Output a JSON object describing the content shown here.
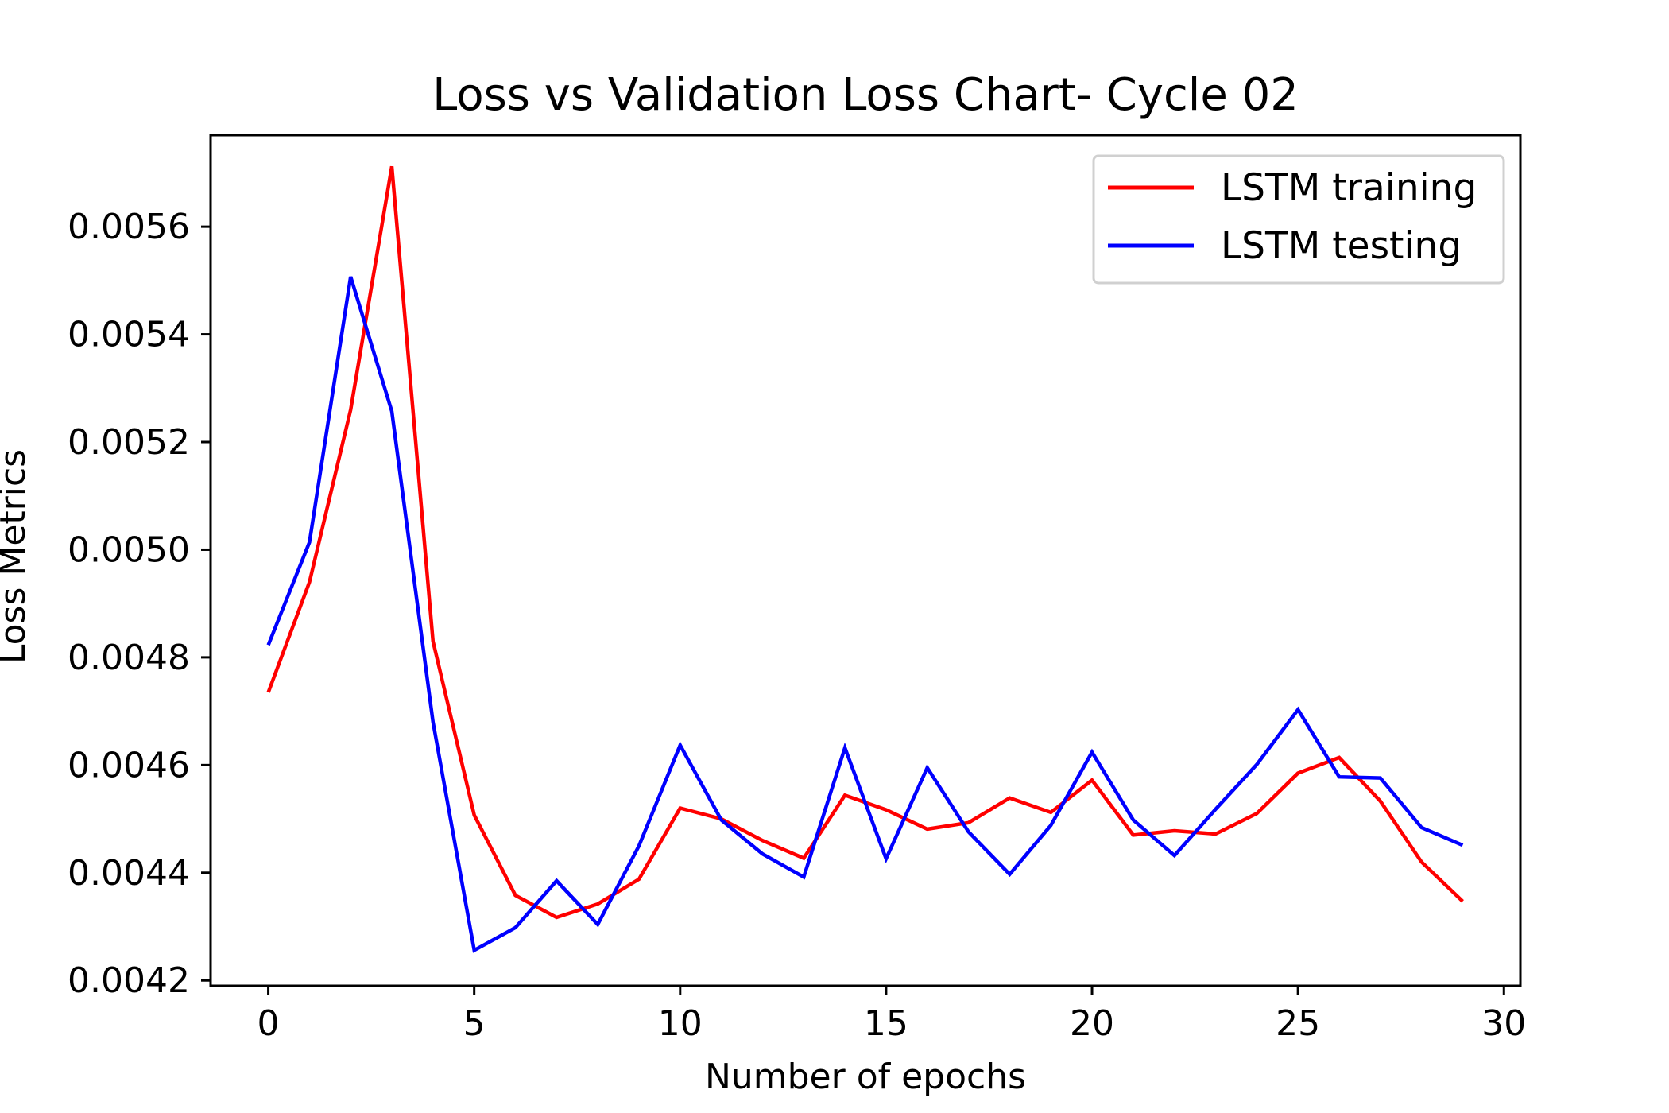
{
  "chart_data": {
    "type": "line",
    "title": "Loss vs Validation Loss Chart- Cycle 02",
    "xlabel": "Number of epochs",
    "ylabel": "Loss Metrics",
    "xlim": [
      -1.4,
      30.4
    ],
    "ylim": [
      0.00419,
      0.00577
    ],
    "xticks": [
      "0",
      "5",
      "10",
      "15",
      "20",
      "25",
      "30"
    ],
    "yticks": [
      "0.0042",
      "0.0044",
      "0.0046",
      "0.0048",
      "0.0050",
      "0.0052",
      "0.0054",
      "0.0056"
    ],
    "grid": false,
    "legend_position": "top-right",
    "x": [
      0,
      1,
      2,
      3,
      4,
      5,
      6,
      7,
      8,
      9,
      10,
      11,
      12,
      13,
      14,
      15,
      16,
      17,
      18,
      19,
      20,
      21,
      22,
      23,
      24,
      25,
      26,
      27,
      28,
      29
    ],
    "series": [
      {
        "name": "LSTM training",
        "color": "#ff0000",
        "values": [
          0.004735,
          0.00494,
          0.00526,
          0.005712,
          0.00483,
          0.004507,
          0.004358,
          0.004317,
          0.004342,
          0.004388,
          0.00452,
          0.0045,
          0.00446,
          0.004427,
          0.004544,
          0.004517,
          0.004481,
          0.004493,
          0.004539,
          0.004512,
          0.004572,
          0.00447,
          0.004478,
          0.004472,
          0.00451,
          0.004585,
          0.004614,
          0.004533,
          0.00442,
          0.004347
        ]
      },
      {
        "name": "LSTM testing",
        "color": "#0000ff",
        "values": [
          0.004823,
          0.005014,
          0.005507,
          0.005257,
          0.00468,
          0.004256,
          0.004298,
          0.004385,
          0.004304,
          0.00445,
          0.004637,
          0.004498,
          0.004435,
          0.004392,
          0.004632,
          0.004426,
          0.004595,
          0.004476,
          0.004397,
          0.004488,
          0.004624,
          0.004498,
          0.004432,
          0.004518,
          0.004601,
          0.004703,
          0.004578,
          0.004576,
          0.004484,
          0.004451
        ]
      }
    ]
  }
}
